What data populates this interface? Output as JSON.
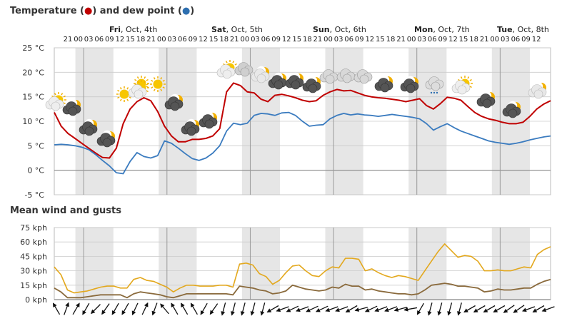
{
  "titles": {
    "temp_prefix": "Temperature (",
    "temp_red_dot": "●",
    "temp_mid": ") and dew point (",
    "temp_blue_dot": "●",
    "temp_suffix": ")",
    "wind": "Mean wind and gusts"
  },
  "days": [
    {
      "label": "Fri, Oct, 4th",
      "bold": "Fri"
    },
    {
      "label": "Sat, Oct, 5th",
      "bold": "Sat"
    },
    {
      "label": "Sun, Oct, 6th",
      "bold": "Sun"
    },
    {
      "label": "Mon, Oct, 7th",
      "bold": "Mon"
    },
    {
      "label": "Tue, Oct, 8th",
      "bold": "Tue"
    }
  ],
  "hour_labels": [
    "21",
    "00",
    "03",
    "06",
    "09",
    "12",
    "15",
    "18",
    "21",
    "00",
    "03",
    "06",
    "09",
    "12",
    "15",
    "18",
    "21",
    "00",
    "03",
    "06",
    "09",
    "12",
    "15",
    "18",
    "21",
    "00",
    "03",
    "06",
    "09",
    "12",
    "15",
    "18",
    "21",
    "00",
    "03",
    "06",
    "09",
    "12",
    "15",
    "18",
    "21",
    "00",
    "03",
    "06",
    "09",
    "12"
  ],
  "colors": {
    "temperature": "#c00000",
    "dew_point": "#3a7bbf",
    "gusts": "#e3a81d",
    "mean_wind": "#8a6a3c",
    "night": "#e6e6e6",
    "grid": "#cccccc"
  },
  "chart_data": [
    {
      "type": "line",
      "ylim": [
        -5,
        25
      ],
      "yticks": [
        "-5 °C",
        "0 °C",
        "5 °C",
        "10 °C",
        "15 °C",
        "20 °C",
        "25 °C"
      ],
      "ytick_values": [
        -5,
        0,
        5,
        10,
        15,
        20,
        25
      ],
      "series": [
        {
          "key": "temperature",
          "values": [
            11.8,
            9,
            7.5,
            6.5,
            5.5,
            4.5,
            3.5,
            2.6,
            2.5,
            4.5,
            9.5,
            12.5,
            14,
            14.8,
            14.2,
            12,
            9,
            7,
            5.8,
            5.8,
            6.3,
            6.3,
            6.5,
            7,
            8.5,
            16,
            17.8,
            17.3,
            16,
            15.8,
            14.5,
            14,
            15.3,
            15.5,
            15.2,
            14.8,
            14.3,
            14,
            14.2,
            15.3,
            16,
            16.5,
            16.2,
            16.3,
            15.8,
            15.3,
            15,
            14.8,
            14.7,
            14.5,
            14.3,
            14,
            14.3,
            14.6,
            13.2,
            12.5,
            13.6,
            14.9,
            14.7,
            14.3,
            13,
            11.8,
            11,
            10.5,
            10.2,
            9.8,
            9.5,
            9.5,
            9.8,
            11,
            12.5,
            13.5,
            14.2
          ]
        },
        {
          "key": "dew_point",
          "values": [
            5.2,
            5.3,
            5.2,
            5,
            4.7,
            4.2,
            3.2,
            2,
            0.9,
            -0.5,
            -0.7,
            1.8,
            3.6,
            2.8,
            2.5,
            3,
            6,
            5.5,
            4.5,
            3.4,
            2.4,
            2,
            2.5,
            3.5,
            5,
            8,
            9.6,
            9.3,
            9.6,
            11.2,
            11.6,
            11.5,
            11.2,
            11.7,
            11.8,
            11.2,
            10,
            9,
            9.2,
            9.3,
            10.5,
            11.2,
            11.6,
            11.3,
            11.5,
            11.3,
            11.2,
            11,
            11.2,
            11.4,
            11.2,
            11,
            10.8,
            10.5,
            9.5,
            8.2,
            8.9,
            9.5,
            8.7,
            8,
            7.5,
            7,
            6.5,
            6,
            5.7,
            5.5,
            5.3,
            5.5,
            5.8,
            6.2,
            6.5,
            6.8,
            7
          ]
        }
      ]
    },
    {
      "type": "line",
      "ylim": [
        0,
        75
      ],
      "yticks": [
        "0 kph",
        "15 kph",
        "30 kph",
        "45 kph",
        "60 kph",
        "75 kph"
      ],
      "ytick_values": [
        0,
        15,
        30,
        45,
        60,
        75
      ],
      "series": [
        {
          "key": "gusts",
          "values": [
            34,
            26,
            10,
            7,
            8,
            9,
            11,
            13,
            14,
            14,
            12,
            12,
            21,
            23,
            20,
            19,
            16,
            13,
            8,
            12,
            15,
            15,
            14,
            14,
            14,
            15,
            15,
            13,
            37,
            38,
            36,
            27,
            24,
            16,
            20,
            28,
            35,
            36,
            30,
            25,
            24,
            30,
            34,
            33,
            43,
            43,
            42,
            30,
            32,
            28,
            25,
            23,
            25,
            24,
            22,
            20,
            30,
            40,
            50,
            58,
            51,
            44,
            46,
            45,
            40,
            30,
            30,
            31,
            30,
            30,
            32,
            34,
            33,
            47,
            52,
            55
          ]
        },
        {
          "key": "mean_wind",
          "values": [
            12,
            8,
            2,
            2,
            2,
            3,
            4,
            5,
            5,
            5,
            5,
            2,
            6,
            8,
            7,
            6,
            5,
            3,
            2,
            4,
            6,
            6,
            6,
            6,
            6,
            6,
            6,
            5,
            14,
            13,
            12,
            10,
            9,
            6,
            7,
            9,
            15,
            13,
            11,
            10,
            9,
            10,
            13,
            12,
            16,
            14,
            14,
            10,
            11,
            9,
            8,
            7,
            6,
            6,
            5,
            6,
            10,
            15,
            16,
            17,
            16,
            14,
            14,
            13,
            12,
            8,
            9,
            11,
            10,
            10,
            11,
            12,
            12,
            16,
            19,
            21
          ]
        }
      ]
    }
  ],
  "wind_directions": [
    330,
    20,
    30,
    210,
    225,
    215,
    210,
    210,
    205,
    25,
    200,
    320,
    330,
    330,
    330,
    210,
    215,
    195,
    195,
    195,
    195,
    195,
    240,
    250,
    245,
    250,
    245,
    245,
    250,
    250,
    240,
    255,
    245,
    250,
    250,
    255,
    260,
    210,
    195,
    195,
    195,
    195,
    240,
    240,
    240,
    240,
    235,
    235,
    250,
    240,
    250
  ]
}
